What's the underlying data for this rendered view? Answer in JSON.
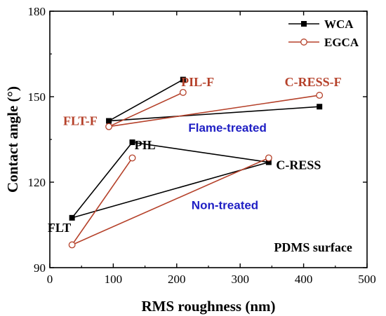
{
  "chart_data": {
    "type": "line",
    "xlabel": "RMS roughness (nm)",
    "ylabel": "Contact angle (°)",
    "xlim": [
      0,
      500
    ],
    "ylim": [
      90,
      180
    ],
    "xticks": [
      0,
      100,
      200,
      300,
      400,
      500
    ],
    "yticks": [
      90,
      120,
      150,
      180
    ],
    "legend_position": "top-right",
    "series": [
      {
        "name": "WCA",
        "color": "#000000",
        "marker": "filled-square",
        "groups": [
          {
            "points": [
              {
                "x": 35,
                "y": 107.5
              },
              {
                "x": 130,
                "y": 134.0
              },
              {
                "x": 345,
                "y": 127.0
              },
              {
                "x": 35,
                "y": 107.5
              }
            ]
          },
          {
            "points": [
              {
                "x": 93,
                "y": 141.5
              },
              {
                "x": 210,
                "y": 156.0
              }
            ]
          },
          {
            "points": [
              {
                "x": 93,
                "y": 141.5
              },
              {
                "x": 425,
                "y": 146.5
              }
            ]
          }
        ]
      },
      {
        "name": "EGCA",
        "color": "#b5412a",
        "marker": "open-circle",
        "groups": [
          {
            "points": [
              {
                "x": 35,
                "y": 98.0
              },
              {
                "x": 130,
                "y": 128.5
              }
            ]
          },
          {
            "points": [
              {
                "x": 35,
                "y": 98.0
              },
              {
                "x": 345,
                "y": 128.5
              }
            ]
          },
          {
            "points": [
              {
                "x": 93,
                "y": 139.5
              },
              {
                "x": 210,
                "y": 151.5
              }
            ]
          },
          {
            "points": [
              {
                "x": 93,
                "y": 139.5
              },
              {
                "x": 425,
                "y": 150.5
              }
            ]
          }
        ]
      }
    ],
    "annotations": [
      {
        "text": "PIL-F",
        "x": 233,
        "y": 153.7,
        "color": "#b5412a",
        "style": "serif"
      },
      {
        "text": "C-RESS-F",
        "x": 415,
        "y": 153.7,
        "color": "#b5412a",
        "style": "serif"
      },
      {
        "text": "FLT-F",
        "x": 48,
        "y": 140,
        "color": "#b5412a",
        "style": "serif"
      },
      {
        "text": "Flame-treated",
        "x": 280,
        "y": 137.7,
        "color": "#1f1fc4",
        "style": "sans"
      },
      {
        "text": "PIL",
        "x": 150,
        "y": 131.5,
        "color": "#000000",
        "style": "serif"
      },
      {
        "text": "C-RESS",
        "x": 392,
        "y": 124.5,
        "color": "#000000",
        "style": "serif"
      },
      {
        "text": "Non-treated",
        "x": 276,
        "y": 110.5,
        "color": "#1f1fc4",
        "style": "sans"
      },
      {
        "text": "FLT",
        "x": 15,
        "y": 102.5,
        "color": "#000000",
        "style": "serif"
      },
      {
        "text": "PDMS surface",
        "x": 415,
        "y": 95.7,
        "color": "#000000",
        "style": "serif"
      }
    ]
  }
}
